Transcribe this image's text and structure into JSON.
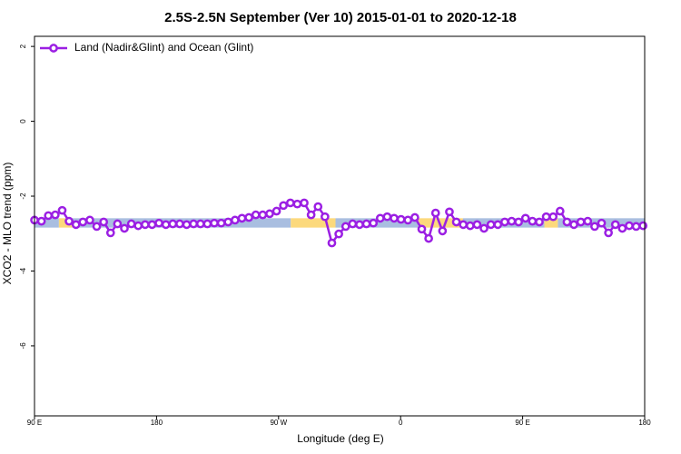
{
  "chart_data": {
    "type": "line",
    "title": "2.5S-2.5N September (Ver 10)   2015-01-01 to 2020-12-18",
    "x_label": "Longitude (deg E)",
    "y_label": "XCO2 - MLO trend (ppm)",
    "xlim": [
      90,
      540
    ],
    "ylim": [
      -7.87,
      2.27
    ],
    "xticks": [
      {
        "value": 90,
        "label": "90 E"
      },
      {
        "value": 180,
        "label": "180"
      },
      {
        "value": 270,
        "label": "90 W"
      },
      {
        "value": 360,
        "label": "0"
      },
      {
        "value": 450,
        "label": "90 E"
      },
      {
        "value": 540,
        "label": "180"
      }
    ],
    "yticks": [
      -6,
      -4,
      -2,
      0,
      2
    ],
    "legend": "top-left",
    "bands": {
      "ylim": [
        -2.84,
        -2.59
      ],
      "segments": [
        {
          "x": [
            90,
            108
          ],
          "color": "#a9bee0"
        },
        {
          "x": [
            108,
            118
          ],
          "color": "#fcd97c"
        },
        {
          "x": [
            118,
            279
          ],
          "color": "#a9bee0"
        },
        {
          "x": [
            279,
            312
          ],
          "color": "#fcd97c"
        },
        {
          "x": [
            312,
            373
          ],
          "color": "#a9bee0"
        },
        {
          "x": [
            373,
            406
          ],
          "color": "#fcd97c"
        },
        {
          "x": [
            406,
            466
          ],
          "color": "#a9bee0"
        },
        {
          "x": [
            466,
            476
          ],
          "color": "#fcd97c"
        },
        {
          "x": [
            476,
            540
          ],
          "color": "#a9bee0"
        }
      ]
    },
    "x": [
      90,
      95.1,
      100.2,
      105.3,
      110.4,
      115.5,
      120.6,
      125.7,
      130.8,
      135.9,
      141,
      146.1,
      151.2,
      156.3,
      161.4,
      166.5,
      171.6,
      176.7,
      181.8,
      186.9,
      192,
      197.1,
      202.2,
      207.3,
      212.4,
      217.5,
      222.6,
      227.7,
      232.8,
      237.9,
      243,
      248.1,
      253.2,
      258.3,
      263.4,
      268.5,
      273.6,
      278.7,
      283.8,
      288.9,
      294,
      299.1,
      304.2,
      309.3,
      314.4,
      319.5,
      324.6,
      329.7,
      334.8,
      339.9,
      345,
      350.1,
      355.2,
      360.3,
      365.4,
      370.5,
      375.6,
      380.7,
      385.8,
      390.9,
      396,
      401.1,
      406.2,
      411.3,
      416.4,
      421.5,
      426.6,
      431.7,
      436.8,
      441.9,
      447,
      452.1,
      457.2,
      462.3,
      467.4,
      472.5,
      477.6,
      482.7,
      487.8,
      492.9,
      498,
      503.1,
      508.2,
      513.3,
      518.4,
      523.5,
      528.6,
      533.7,
      538.8
    ],
    "series": [
      {
        "name": "Land (Nadir&Glint) and Ocean (Glint)",
        "color": "#9b1fe3",
        "values": [
          -2.64,
          -2.67,
          -2.52,
          -2.5,
          -2.38,
          -2.67,
          -2.76,
          -2.69,
          -2.64,
          -2.81,
          -2.69,
          -2.98,
          -2.74,
          -2.86,
          -2.74,
          -2.79,
          -2.76,
          -2.76,
          -2.72,
          -2.76,
          -2.74,
          -2.74,
          -2.76,
          -2.74,
          -2.74,
          -2.74,
          -2.72,
          -2.72,
          -2.69,
          -2.64,
          -2.59,
          -2.57,
          -2.5,
          -2.5,
          -2.47,
          -2.4,
          -2.25,
          -2.18,
          -2.21,
          -2.18,
          -2.5,
          -2.28,
          -2.55,
          -3.25,
          -3.01,
          -2.81,
          -2.74,
          -2.76,
          -2.74,
          -2.72,
          -2.59,
          -2.55,
          -2.59,
          -2.62,
          -2.64,
          -2.57,
          -2.88,
          -3.13,
          -2.45,
          -2.93,
          -2.42,
          -2.69,
          -2.76,
          -2.79,
          -2.76,
          -2.86,
          -2.76,
          -2.76,
          -2.69,
          -2.67,
          -2.69,
          -2.59,
          -2.67,
          -2.69,
          -2.55,
          -2.55,
          -2.4,
          -2.69,
          -2.76,
          -2.69,
          -2.67,
          -2.81,
          -2.72,
          -2.98,
          -2.76,
          -2.86,
          -2.79,
          -2.81,
          -2.79
        ]
      }
    ]
  }
}
